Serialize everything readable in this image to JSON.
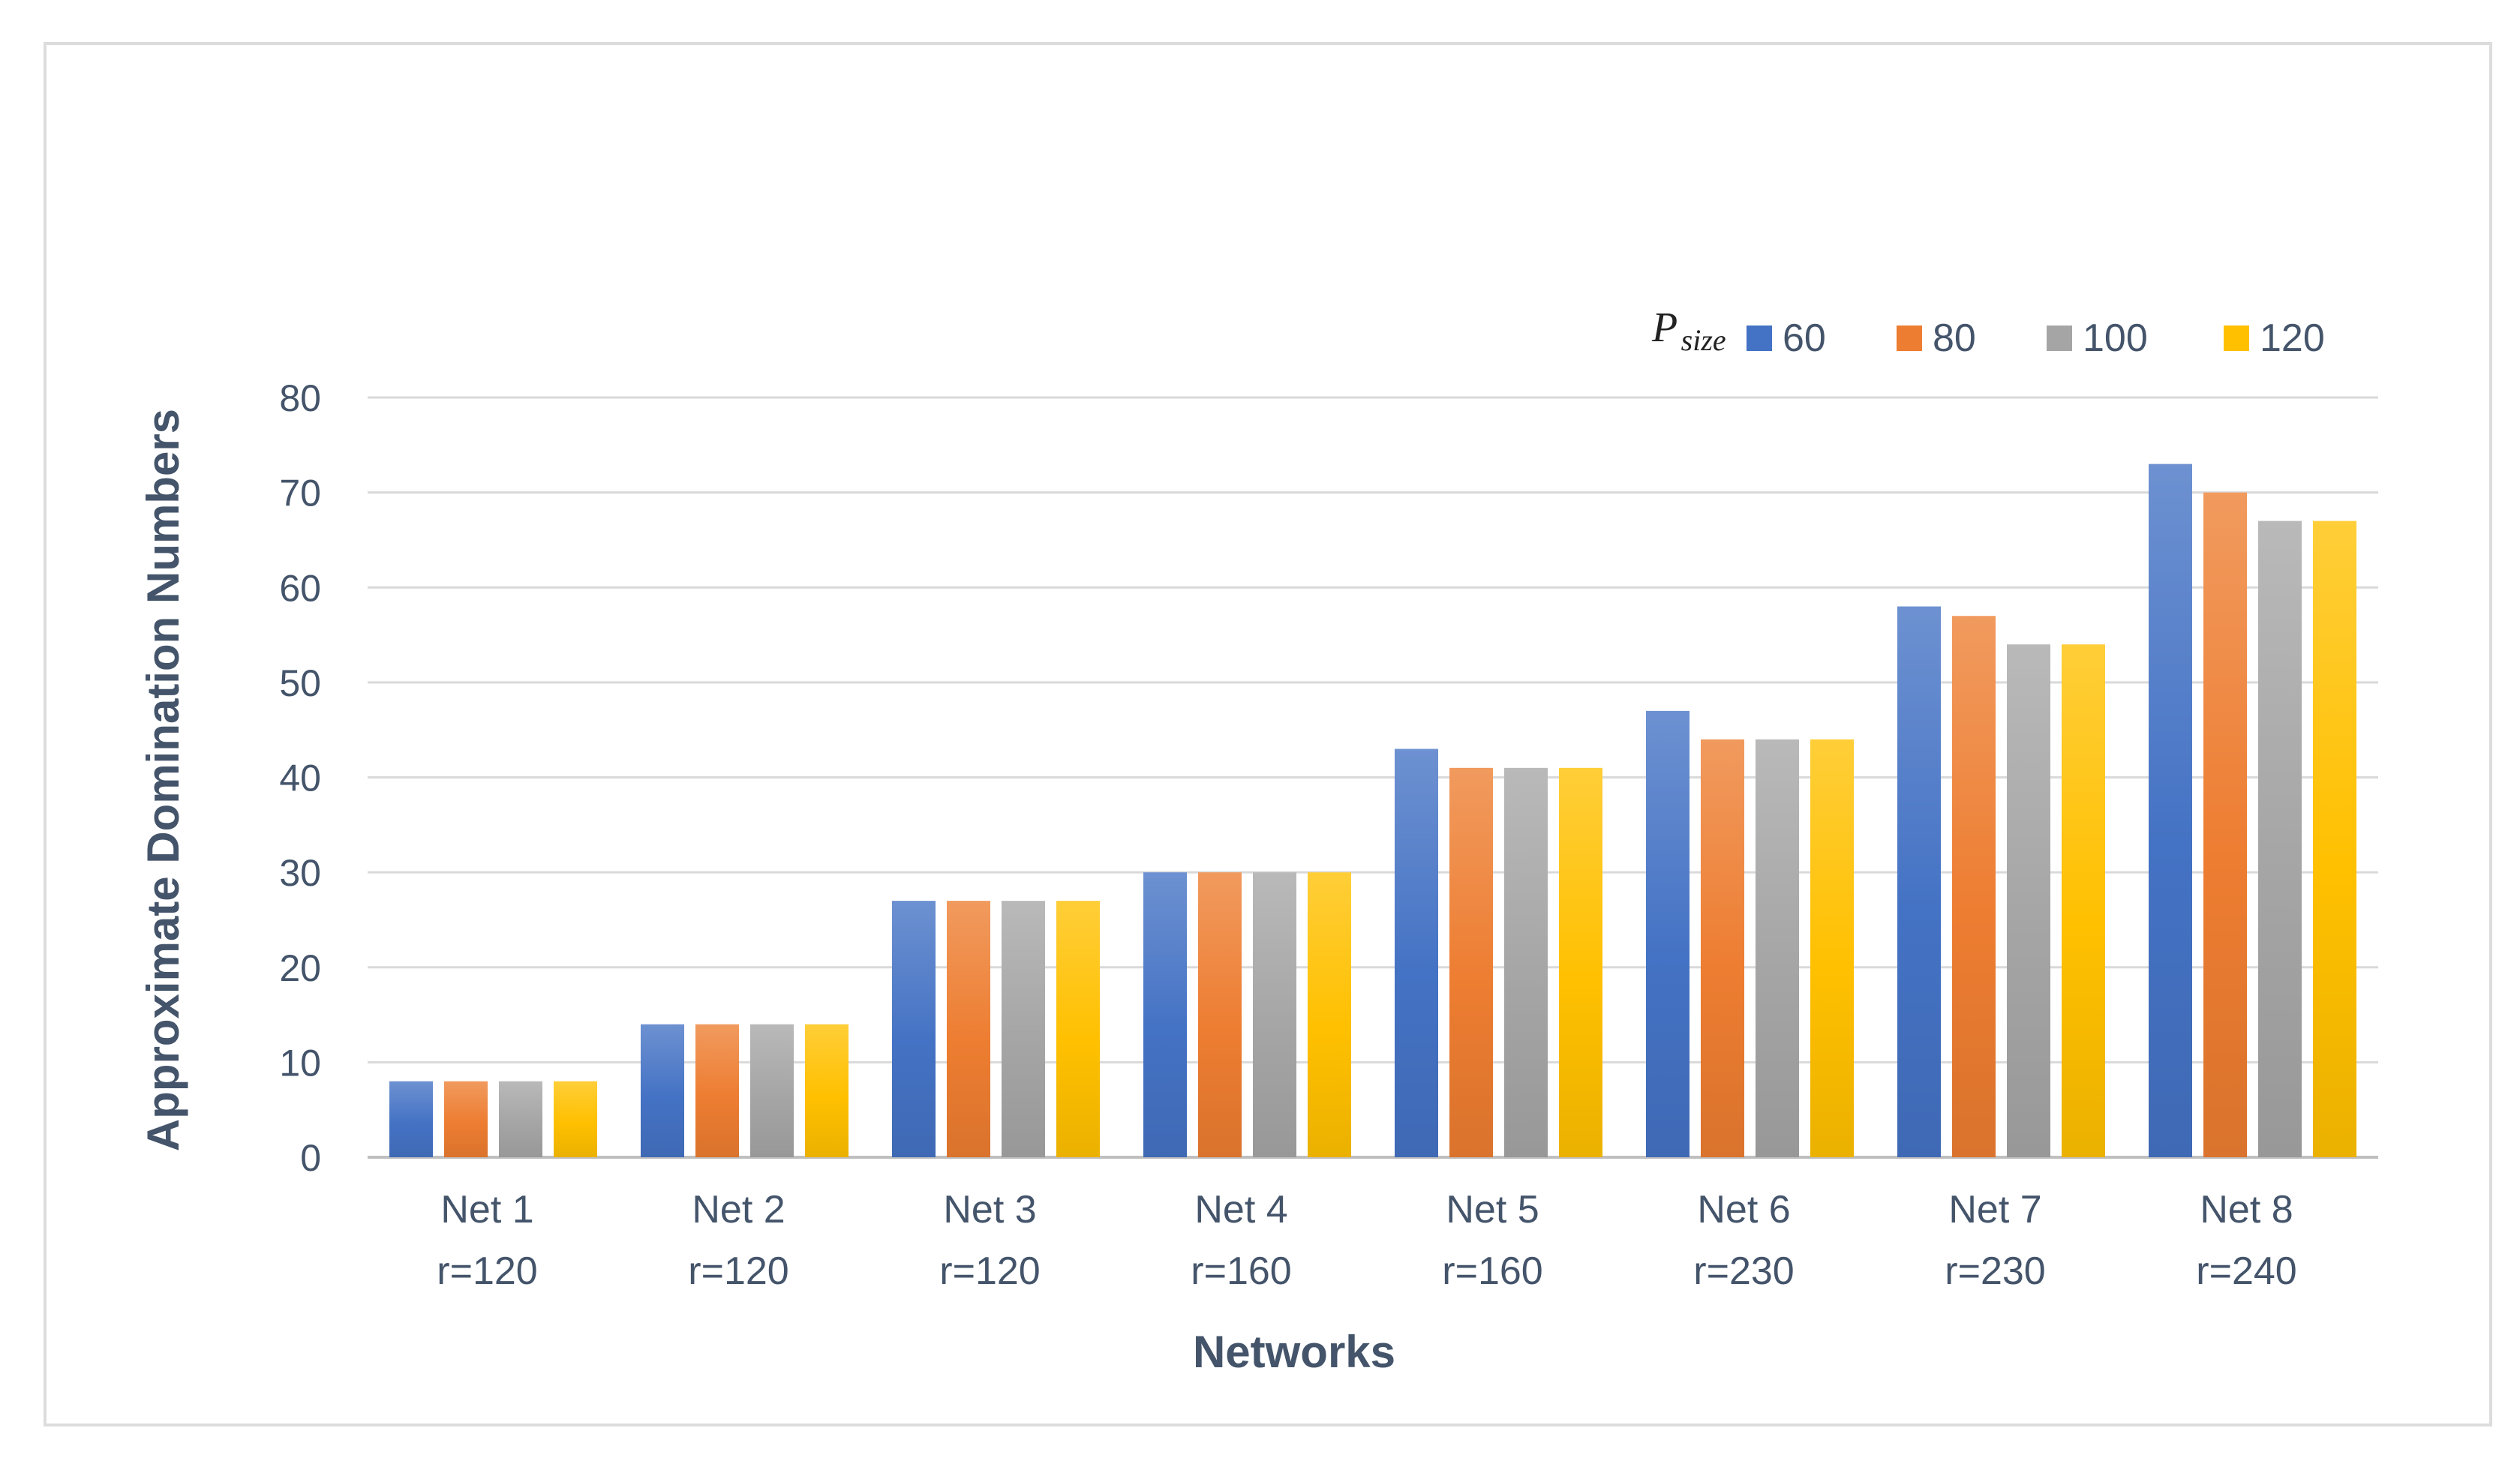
{
  "chart_data": {
    "type": "bar",
    "xlabel": "Networks",
    "ylabel": "Approximate Domination Numbers",
    "ylim": [
      0,
      80
    ],
    "yticks": [
      0,
      10,
      20,
      30,
      40,
      50,
      60,
      70,
      80
    ],
    "grid": "horizontal",
    "legend_position": "top-right",
    "legend_title": {
      "main": "P",
      "sub": "size"
    },
    "categories": [
      {
        "line1": "Net 1",
        "line2": "r=120"
      },
      {
        "line1": "Net 2",
        "line2": "r=120"
      },
      {
        "line1": "Net 3",
        "line2": "r=120"
      },
      {
        "line1": "Net 4",
        "line2": "r=160"
      },
      {
        "line1": "Net 5",
        "line2": "r=160"
      },
      {
        "line1": "Net 6",
        "line2": "r=230"
      },
      {
        "line1": "Net 7",
        "line2": "r=230"
      },
      {
        "line1": "Net 8",
        "line2": "r=240"
      }
    ],
    "series": [
      {
        "name": "60",
        "color": "#4472c4",
        "values": [
          8,
          14,
          27,
          30,
          43,
          47,
          58,
          73
        ]
      },
      {
        "name": "80",
        "color": "#ed7d31",
        "values": [
          8,
          14,
          27,
          30,
          41,
          44,
          57,
          70
        ]
      },
      {
        "name": "100",
        "color": "#a5a5a5",
        "values": [
          8,
          14,
          27,
          30,
          41,
          44,
          54,
          67
        ]
      },
      {
        "name": "120",
        "color": "#ffc000",
        "values": [
          8,
          14,
          27,
          30,
          41,
          44,
          54,
          67
        ]
      }
    ]
  }
}
